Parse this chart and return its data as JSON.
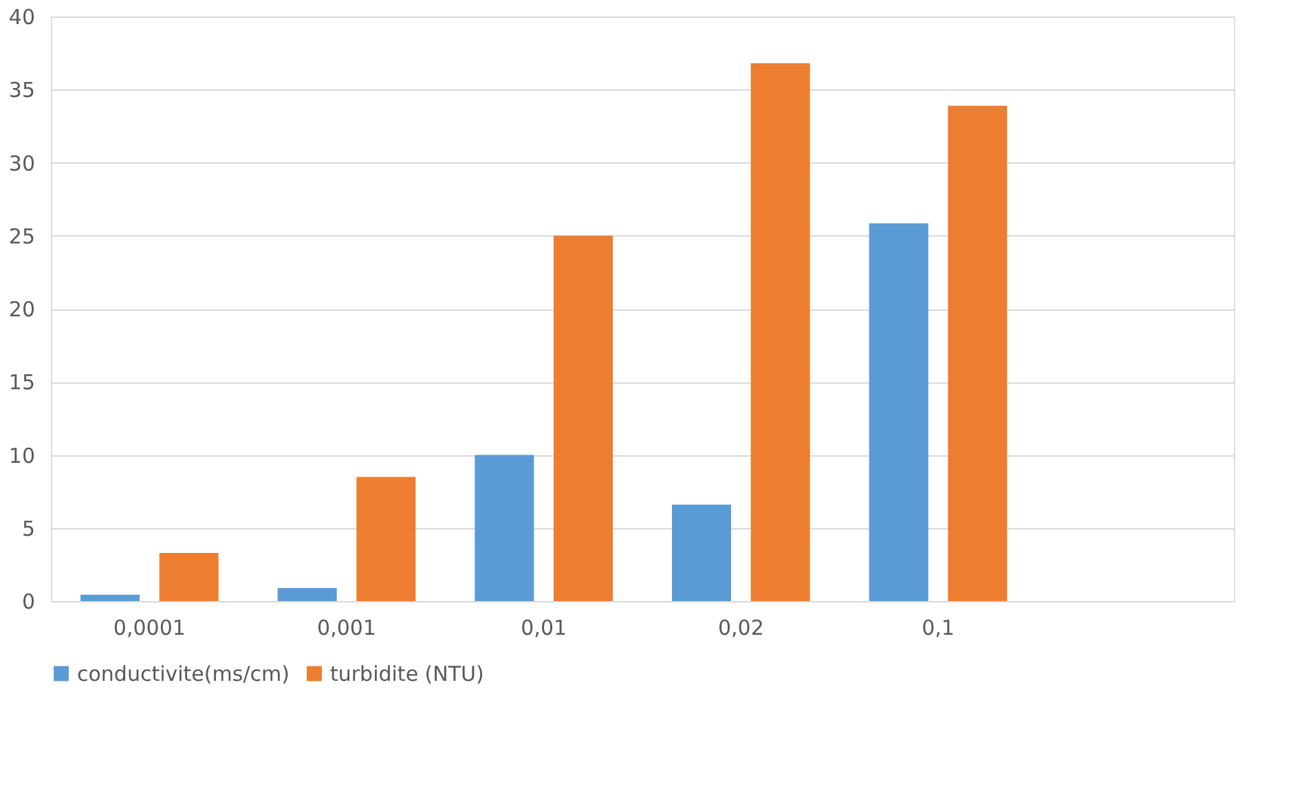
{
  "chart_data": {
    "type": "bar",
    "categories": [
      "0,0001",
      "0,001",
      "0,01",
      "0,02",
      "0,1",
      null
    ],
    "series": [
      {
        "name": "conductivite(ms/cm)",
        "color": "#5b9bd5",
        "values": [
          0.44,
          0.9,
          10.0,
          6.6,
          25.85,
          null
        ]
      },
      {
        "name": "turbidite (NTU)",
        "color": "#ed7d31",
        "values": [
          3.3,
          8.5,
          25.0,
          36.8,
          33.9,
          null
        ]
      }
    ],
    "ylim": [
      0,
      40
    ],
    "yticks": [
      0,
      5,
      10,
      15,
      20,
      25,
      30,
      35,
      40
    ],
    "grid": "y",
    "legend": "bottom"
  }
}
